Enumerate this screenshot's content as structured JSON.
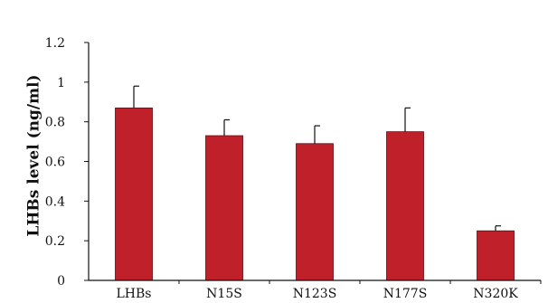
{
  "chart_data": {
    "type": "bar",
    "title": "",
    "xlabel": "",
    "ylabel": "LHBs level (ng/ml)",
    "categories": [
      "LHBs",
      "N15S",
      "N123S",
      "N177S",
      "N320K"
    ],
    "values": [
      0.87,
      0.73,
      0.69,
      0.75,
      0.25
    ],
    "errors": [
      0.11,
      0.08,
      0.09,
      0.12,
      0.025
    ],
    "ylim": [
      0,
      1.2
    ],
    "yticks": [
      "0",
      "0.2",
      "0.4",
      "0.6",
      "0.8",
      "1",
      "1.2"
    ],
    "grid": false,
    "legend": "none",
    "bar_color": "#C0202A"
  }
}
